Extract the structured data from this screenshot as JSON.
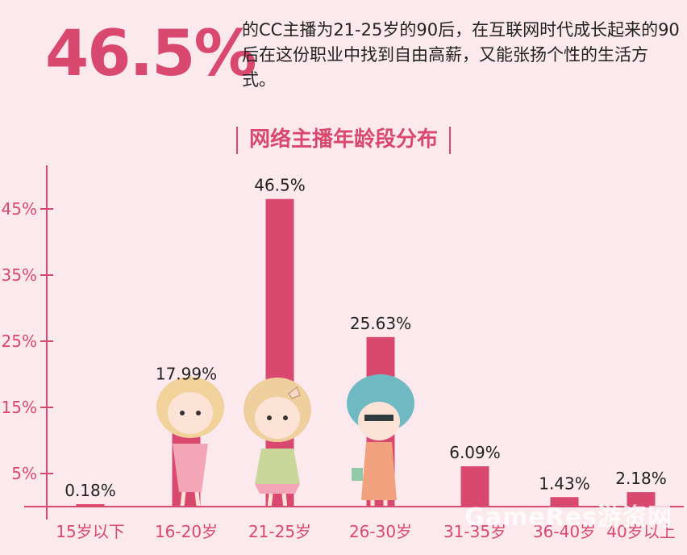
{
  "header": {
    "big_stat": "46.5%",
    "description": "的CC主播为21-25岁的90后，在互联网时代成长起来的90后在这份职业中找到自由高薪，又能张扬个性的生活方式。"
  },
  "chart_data": {
    "type": "bar",
    "title": "网络主播年龄段分布",
    "categories": [
      "15岁以下",
      "16-20岁",
      "21-25岁",
      "26-30岁",
      "31-35岁",
      "36-40岁",
      "40岁以上"
    ],
    "values": [
      0.18,
      17.99,
      46.5,
      25.63,
      6.09,
      1.43,
      2.18
    ],
    "data_labels": [
      "0.18%",
      "17.99%",
      "46.5%",
      "25.63%",
      "6.09%",
      "1.43%",
      "2.18%"
    ],
    "y_ticks": [
      5,
      15,
      25,
      35,
      45
    ],
    "y_tick_labels": [
      "5%",
      "15%",
      "25%",
      "35%",
      "45%"
    ],
    "ylim": [
      0,
      50
    ],
    "xlabel": "",
    "ylabel": "",
    "grid": false,
    "colors": {
      "bar": "#d9486f",
      "axis": "#d9486f",
      "tick_text": "#d9486f"
    }
  },
  "watermark": "GameRes游资网"
}
